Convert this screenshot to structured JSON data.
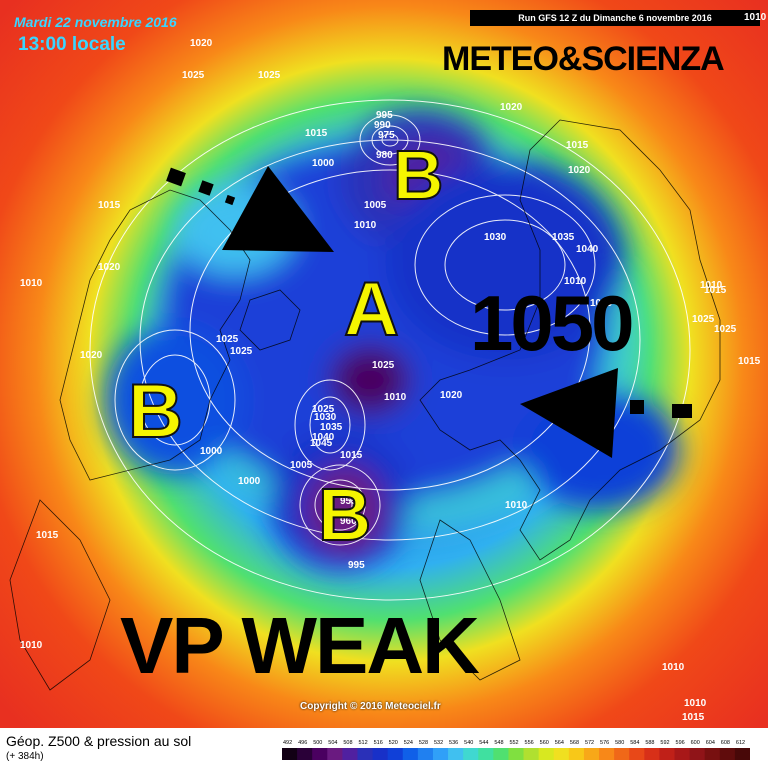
{
  "header": {
    "date_line": "Mardi 22 novembre 2016",
    "time_line": "13:00 locale",
    "run_info": "Run GFS 12 Z du Dimanche 6 novembre 2016",
    "brand": "METEO&SCIENZA"
  },
  "annotations": {
    "low_label": "B",
    "high_label": "A",
    "high_pressure_value": "1050",
    "headline": "VP WEAK"
  },
  "isobars": [
    "1020",
    "1025",
    "1025",
    "1020",
    "1010",
    "1015",
    "1015",
    "1020",
    "1015",
    "1020",
    "995",
    "990",
    "975",
    "980",
    "1000",
    "1005",
    "1010",
    "1030",
    "1035",
    "1040",
    "1010",
    "1040",
    "1010",
    "1015",
    "1025",
    "1025",
    "1015",
    "1020",
    "1025",
    "1025",
    "1025",
    "1010",
    "1020",
    "1025",
    "1030",
    "1035",
    "1040",
    "1045",
    "1015",
    "1005",
    "1000",
    "1000",
    "955",
    "960",
    "995",
    "1010",
    "1015",
    "1010",
    "1010",
    "1010",
    "1015",
    "1010"
  ],
  "footer": {
    "copyright": "Copyright © 2016 Meteociel.fr",
    "field_title": "Géop. Z500 & pression au sol",
    "lead_time": "(+ 384h)"
  },
  "legend": {
    "ticks": [
      "492",
      "496",
      "500",
      "504",
      "508",
      "512",
      "516",
      "520",
      "524",
      "528",
      "532",
      "536",
      "540",
      "544",
      "548",
      "552",
      "556",
      "560",
      "564",
      "568",
      "572",
      "576",
      "580",
      "584",
      "588",
      "592",
      "596",
      "600",
      "604",
      "608",
      "612"
    ],
    "colors": [
      "#120014",
      "#2a0038",
      "#4a0060",
      "#6a1a80",
      "#5020a0",
      "#2a30b8",
      "#1830c8",
      "#1040d8",
      "#1060e8",
      "#2080f0",
      "#30a0f8",
      "#40c0f0",
      "#40d8d0",
      "#40e0a0",
      "#50e070",
      "#80e040",
      "#b0e030",
      "#d8e820",
      "#f0e020",
      "#f8c818",
      "#f8a818",
      "#f88818",
      "#f06818",
      "#e84818",
      "#d83018",
      "#c02018",
      "#a81818",
      "#901418",
      "#781010",
      "#600c0c",
      "#480808"
    ]
  }
}
